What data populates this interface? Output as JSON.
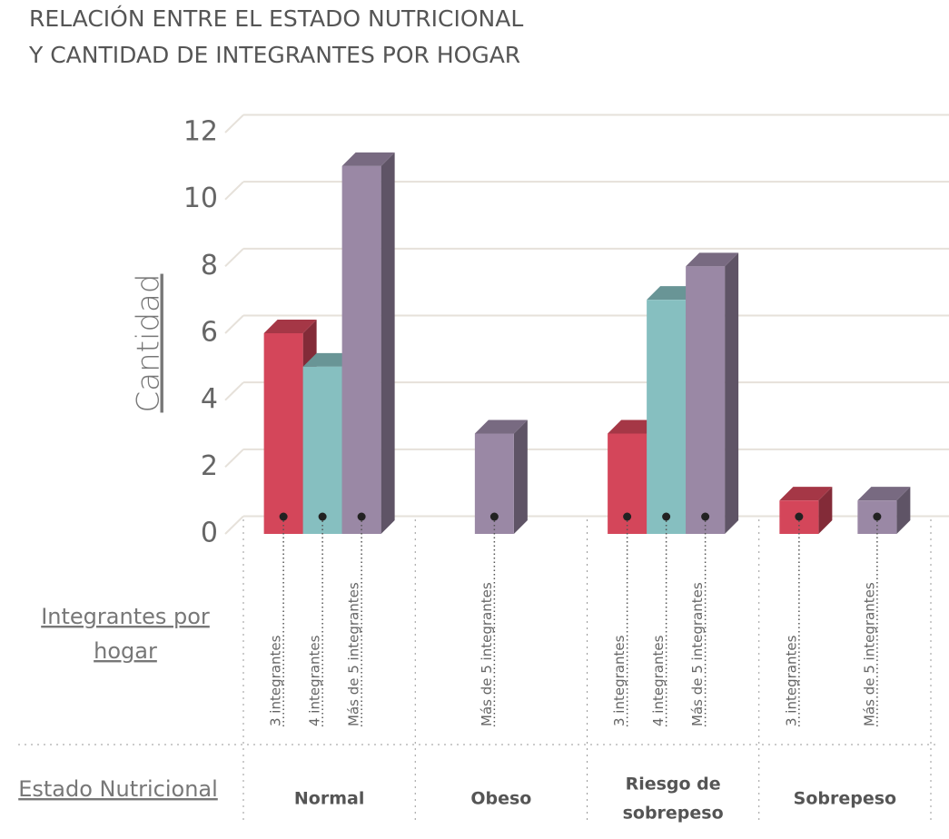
{
  "chart_data": {
    "type": "bar",
    "title": [
      "RELACIÓN ENTRE EL ESTADO NUTRICIONAL",
      "Y CANTIDAD DE INTEGRANTES POR HOGAR"
    ],
    "y_label": "Cantidad",
    "x_label": [
      "Integrantes por",
      "hogar"
    ],
    "group_label": "Estado Nutricional",
    "categories": [
      "Normal",
      "Obeso",
      "Riesgo de sobrepeso",
      "Sobrepeso"
    ],
    "category_lines": [
      [
        "Normal"
      ],
      [
        "Obeso"
      ],
      [
        "Riesgo de",
        "sobrepeso"
      ],
      [
        "Sobrepeso"
      ]
    ],
    "series": [
      {
        "name": "3 integrantes",
        "color": "#d4465a",
        "values": [
          6,
          null,
          3,
          1
        ]
      },
      {
        "name": "4 integrantes",
        "color": "#86bfc0",
        "values": [
          5,
          null,
          7,
          null
        ]
      },
      {
        "name": "Más de 5 integrantes",
        "color": "#9a88a5",
        "values": [
          11,
          3,
          8,
          1
        ]
      }
    ],
    "ylim": [
      0,
      12
    ],
    "yticks": [
      0,
      2,
      4,
      6,
      8,
      10,
      12
    ],
    "grid": true
  }
}
